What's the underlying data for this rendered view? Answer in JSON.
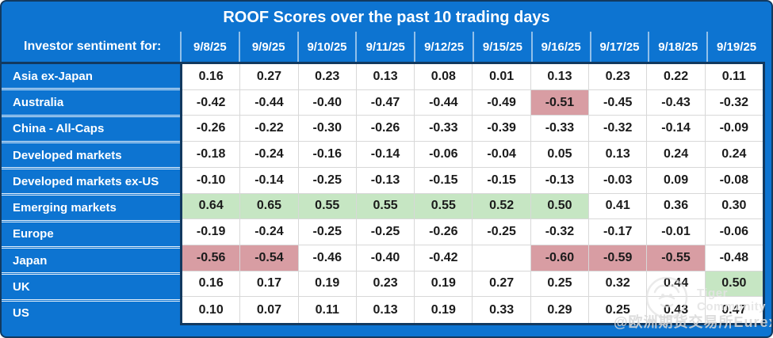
{
  "title": "ROOF Scores over the past 10 trading days",
  "watermark": {
    "brand": "Tiger Community",
    "credit": "@欧洲期货交易所Eurex",
    "logo": "tiger-logo-icon"
  },
  "colors": {
    "blue": "#0d74d1",
    "dark": "#12395f",
    "green": "#c6e6c3",
    "pink": "#d89da3",
    "grid": "#d8d8d8"
  },
  "chart_data": {
    "type": "table",
    "title": "ROOF Scores over the past 10 trading days",
    "corner_label": "Investor sentiment for:",
    "columns": [
      "9/8/25",
      "9/9/25",
      "9/10/25",
      "9/11/25",
      "9/12/25",
      "9/15/25",
      "9/16/25",
      "9/17/25",
      "9/18/25",
      "9/19/25"
    ],
    "rows": [
      {
        "label": "Asia ex-Japan",
        "values": [
          "0.16",
          "0.27",
          "0.23",
          "0.13",
          "0.08",
          "0.01",
          "0.13",
          "0.23",
          "0.22",
          "0.11"
        ],
        "highlights": [
          "",
          "",
          "",
          "",
          "",
          "",
          "",
          "",
          "",
          ""
        ]
      },
      {
        "label": "Australia",
        "values": [
          "-0.42",
          "-0.44",
          "-0.40",
          "-0.47",
          "-0.44",
          "-0.49",
          "-0.51",
          "-0.45",
          "-0.43",
          "-0.32"
        ],
        "highlights": [
          "",
          "",
          "",
          "",
          "",
          "",
          "pink",
          "",
          "",
          ""
        ]
      },
      {
        "label": "China - All-Caps",
        "values": [
          "-0.26",
          "-0.22",
          "-0.30",
          "-0.26",
          "-0.33",
          "-0.39",
          "-0.33",
          "-0.32",
          "-0.14",
          "-0.09"
        ],
        "highlights": [
          "",
          "",
          "",
          "",
          "",
          "",
          "",
          "",
          "",
          ""
        ]
      },
      {
        "label": "Developed markets",
        "values": [
          "-0.18",
          "-0.24",
          "-0.16",
          "-0.14",
          "-0.06",
          "-0.04",
          "0.05",
          "0.13",
          "0.24",
          "0.24"
        ],
        "highlights": [
          "",
          "",
          "",
          "",
          "",
          "",
          "",
          "",
          "",
          ""
        ]
      },
      {
        "label": "Developed markets ex-US",
        "values": [
          "-0.10",
          "-0.14",
          "-0.25",
          "-0.13",
          "-0.15",
          "-0.15",
          "-0.13",
          "-0.03",
          "0.09",
          "-0.08"
        ],
        "highlights": [
          "",
          "",
          "",
          "",
          "",
          "",
          "",
          "",
          "",
          ""
        ]
      },
      {
        "label": "Emerging markets",
        "values": [
          "0.64",
          "0.65",
          "0.55",
          "0.55",
          "0.55",
          "0.52",
          "0.50",
          "0.41",
          "0.36",
          "0.30"
        ],
        "highlights": [
          "green",
          "green",
          "green",
          "green",
          "green",
          "green",
          "green",
          "",
          "",
          ""
        ]
      },
      {
        "label": "Europe",
        "values": [
          "-0.19",
          "-0.24",
          "-0.25",
          "-0.25",
          "-0.26",
          "-0.25",
          "-0.32",
          "-0.17",
          "-0.01",
          "-0.06"
        ],
        "highlights": [
          "",
          "",
          "",
          "",
          "",
          "",
          "",
          "",
          "",
          ""
        ]
      },
      {
        "label": "Japan",
        "values": [
          "-0.56",
          "-0.54",
          "-0.46",
          "-0.40",
          "-0.42",
          "",
          "-0.60",
          "-0.59",
          "-0.55",
          "-0.48"
        ],
        "highlights": [
          "pink",
          "pink",
          "",
          "",
          "",
          "",
          "pink",
          "pink",
          "pink",
          ""
        ]
      },
      {
        "label": "UK",
        "values": [
          "0.16",
          "0.17",
          "0.19",
          "0.23",
          "0.19",
          "0.27",
          "0.25",
          "0.32",
          "0.44",
          "0.50"
        ],
        "highlights": [
          "",
          "",
          "",
          "",
          "",
          "",
          "",
          "",
          "",
          "green"
        ]
      },
      {
        "label": "US",
        "values": [
          "0.10",
          "0.07",
          "0.11",
          "0.13",
          "0.19",
          "0.33",
          "0.29",
          "0.25",
          "0.43",
          "0.47"
        ],
        "highlights": [
          "",
          "",
          "",
          "",
          "",
          "",
          "",
          "",
          "",
          ""
        ]
      }
    ]
  }
}
